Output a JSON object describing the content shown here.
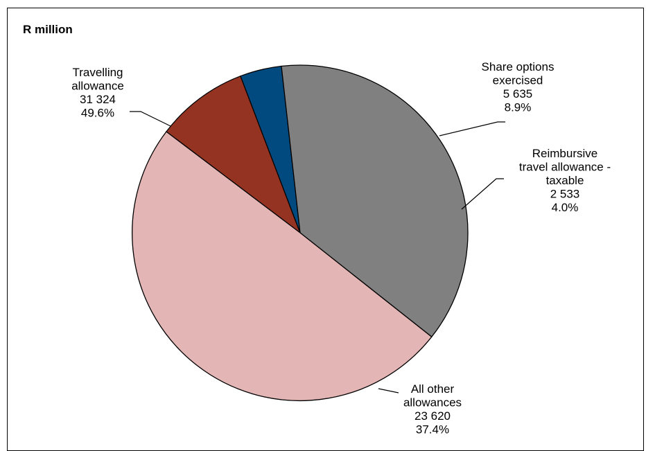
{
  "chart_data": {
    "type": "pie",
    "title": "R million",
    "slices": [
      {
        "label_lines": [
          "Share options",
          "exercised"
        ],
        "value": "5 635",
        "percent": "8.9%",
        "share": 0.089,
        "color": "#943321"
      },
      {
        "label_lines": [
          "Reimbursive",
          "travel allowance -",
          "taxable"
        ],
        "value": "2 533",
        "percent": "4.0%",
        "share": 0.04,
        "color": "#004a7f"
      },
      {
        "label_lines": [
          "All other",
          "allowances"
        ],
        "value": "23 620",
        "percent": "37.4%",
        "share": 0.374,
        "color": "#808080"
      },
      {
        "label_lines": [
          "Travelling",
          "allowance"
        ],
        "value": "31 324",
        "percent": "49.6%",
        "share": 0.496,
        "color": "#e3b5b5"
      }
    ],
    "legend": "none",
    "grid": false
  }
}
